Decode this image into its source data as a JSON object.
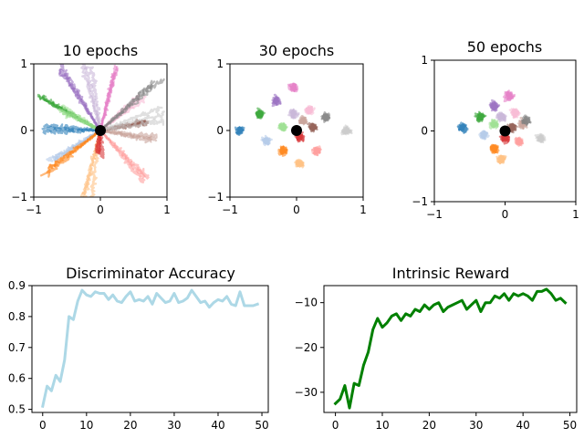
{
  "chart_data": [
    {
      "type": "line",
      "title": "10 epochs",
      "xlim": [
        -1,
        1
      ],
      "ylim": [
        -1,
        1
      ],
      "xticks": [
        -1,
        0,
        1
      ],
      "yticks": [
        -1,
        0,
        1
      ],
      "xtick_labels": [
        "−1",
        "0",
        "1"
      ],
      "ytick_labels": [
        "−1",
        "0",
        "1"
      ],
      "grid": false,
      "origin_marker": [
        0,
        0
      ],
      "trajectory_groups": [
        {
          "color": "#1f77b4",
          "end": [
            -0.85,
            0.0
          ]
        },
        {
          "color": "#aec7e8",
          "end": [
            -0.75,
            -0.45
          ]
        },
        {
          "color": "#ff7f0e",
          "end": [
            -0.8,
            -0.65
          ]
        },
        {
          "color": "#ffbb78",
          "end": [
            -0.2,
            -0.95
          ]
        },
        {
          "color": "#2ca02c",
          "end": [
            -0.9,
            0.5
          ]
        },
        {
          "color": "#98df8a",
          "end": [
            -0.55,
            0.3
          ]
        },
        {
          "color": "#d62728",
          "end": [
            -0.05,
            -0.35
          ]
        },
        {
          "color": "#ff9896",
          "end": [
            0.7,
            -0.75
          ]
        },
        {
          "color": "#9467bd",
          "end": [
            -0.65,
            0.9
          ]
        },
        {
          "color": "#c5b0d5",
          "end": [
            -0.2,
            0.95
          ]
        },
        {
          "color": "#8c564b",
          "end": [
            0.7,
            0.1
          ]
        },
        {
          "color": "#c49c94",
          "end": [
            0.85,
            -0.1
          ]
        },
        {
          "color": "#e377c2",
          "end": [
            0.2,
            0.9
          ]
        },
        {
          "color": "#f7b6d2",
          "end": [
            0.6,
            0.5
          ]
        },
        {
          "color": "#7f7f7f",
          "end": [
            0.9,
            0.75
          ]
        },
        {
          "color": "#c7c7c7",
          "end": [
            0.95,
            0.25
          ]
        }
      ]
    },
    {
      "type": "scatter",
      "title": "30 epochs",
      "xlim": [
        -1,
        1
      ],
      "ylim": [
        -1,
        1
      ],
      "xticks": [
        -1,
        0,
        1
      ],
      "yticks": [
        -1,
        0,
        1
      ],
      "xtick_labels": [
        "−1",
        "0",
        "1"
      ],
      "ytick_labels": [
        "−1",
        "0",
        "1"
      ],
      "grid": false,
      "origin_marker": [
        0,
        0
      ],
      "clusters": [
        {
          "color": "#1f77b4",
          "center": [
            -0.85,
            0.0
          ]
        },
        {
          "color": "#aec7e8",
          "center": [
            -0.45,
            -0.15
          ]
        },
        {
          "color": "#ff7f0e",
          "center": [
            -0.2,
            -0.3
          ]
        },
        {
          "color": "#ffbb78",
          "center": [
            0.05,
            -0.5
          ]
        },
        {
          "color": "#2ca02c",
          "center": [
            -0.55,
            0.25
          ]
        },
        {
          "color": "#98df8a",
          "center": [
            -0.2,
            0.05
          ]
        },
        {
          "color": "#d62728",
          "center": [
            0.05,
            -0.1
          ]
        },
        {
          "color": "#ff9896",
          "center": [
            0.3,
            -0.3
          ]
        },
        {
          "color": "#9467bd",
          "center": [
            -0.3,
            0.45
          ]
        },
        {
          "color": "#c5b0d5",
          "center": [
            -0.05,
            0.25
          ]
        },
        {
          "color": "#8c564b",
          "center": [
            0.25,
            0.05
          ]
        },
        {
          "color": "#c49c94",
          "center": [
            0.1,
            0.15
          ]
        },
        {
          "color": "#e377c2",
          "center": [
            -0.05,
            0.65
          ]
        },
        {
          "color": "#f7b6d2",
          "center": [
            0.2,
            0.3
          ]
        },
        {
          "color": "#7f7f7f",
          "center": [
            0.45,
            0.2
          ]
        },
        {
          "color": "#c7c7c7",
          "center": [
            0.75,
            0.0
          ]
        }
      ]
    },
    {
      "type": "scatter",
      "title": "50 epochs",
      "xlim": [
        -1,
        1
      ],
      "ylim": [
        -1,
        1
      ],
      "xticks": [
        -1,
        0,
        1
      ],
      "yticks": [
        -1,
        0,
        1
      ],
      "xtick_labels": [
        "−1",
        "0",
        "1"
      ],
      "ytick_labels": [
        "−1",
        "0",
        "1"
      ],
      "grid": false,
      "origin_marker": [
        0,
        0
      ],
      "clusters": [
        {
          "color": "#1f77b4",
          "center": [
            -0.6,
            0.05
          ]
        },
        {
          "color": "#aec7e8",
          "center": [
            -0.3,
            -0.05
          ]
        },
        {
          "color": "#ff7f0e",
          "center": [
            -0.15,
            -0.25
          ]
        },
        {
          "color": "#ffbb78",
          "center": [
            -0.05,
            -0.4
          ]
        },
        {
          "color": "#2ca02c",
          "center": [
            -0.35,
            0.2
          ]
        },
        {
          "color": "#98df8a",
          "center": [
            -0.15,
            0.1
          ]
        },
        {
          "color": "#d62728",
          "center": [
            0.0,
            -0.1
          ]
        },
        {
          "color": "#ff9896",
          "center": [
            0.2,
            -0.15
          ]
        },
        {
          "color": "#9467bd",
          "center": [
            -0.15,
            0.35
          ]
        },
        {
          "color": "#c5b0d5",
          "center": [
            -0.05,
            0.2
          ]
        },
        {
          "color": "#8c564b",
          "center": [
            0.1,
            0.05
          ]
        },
        {
          "color": "#c49c94",
          "center": [
            0.25,
            0.1
          ]
        },
        {
          "color": "#e377c2",
          "center": [
            0.05,
            0.5
          ]
        },
        {
          "color": "#f7b6d2",
          "center": [
            0.15,
            0.25
          ]
        },
        {
          "color": "#7f7f7f",
          "center": [
            0.3,
            0.15
          ]
        },
        {
          "color": "#c7c7c7",
          "center": [
            0.5,
            -0.1
          ]
        }
      ]
    },
    {
      "type": "line",
      "title": "Discriminator Accuracy",
      "xlim": [
        -2.45,
        51.45
      ],
      "ylim": [
        0.49,
        0.9
      ],
      "xticks": [
        0,
        10,
        20,
        30,
        40,
        50
      ],
      "yticks": [
        0.5,
        0.6,
        0.7,
        0.8,
        0.9
      ],
      "xtick_labels": [
        "0",
        "10",
        "20",
        "30",
        "40",
        "50"
      ],
      "ytick_labels": [
        "0.5",
        "0.6",
        "0.7",
        "0.8",
        "0.9"
      ],
      "grid": false,
      "series": [
        {
          "color": "#add8e6",
          "x": [
            0,
            1,
            2,
            3,
            4,
            5,
            6,
            7,
            8,
            9,
            10,
            11,
            12,
            13,
            14,
            15,
            16,
            17,
            18,
            19,
            20,
            21,
            22,
            23,
            24,
            25,
            26,
            27,
            28,
            29,
            30,
            31,
            32,
            33,
            34,
            35,
            36,
            37,
            38,
            39,
            40,
            41,
            42,
            43,
            44,
            45,
            46,
            47,
            48,
            49
          ],
          "values": [
            0.51,
            0.575,
            0.56,
            0.61,
            0.59,
            0.66,
            0.8,
            0.79,
            0.85,
            0.885,
            0.87,
            0.865,
            0.88,
            0.875,
            0.875,
            0.855,
            0.87,
            0.85,
            0.845,
            0.865,
            0.88,
            0.85,
            0.855,
            0.85,
            0.865,
            0.84,
            0.875,
            0.86,
            0.845,
            0.85,
            0.875,
            0.845,
            0.85,
            0.86,
            0.885,
            0.865,
            0.845,
            0.85,
            0.83,
            0.845,
            0.855,
            0.85,
            0.865,
            0.84,
            0.835,
            0.88,
            0.835,
            0.835,
            0.835,
            0.84
          ]
        }
      ]
    },
    {
      "type": "line",
      "title": "Intrinsic Reward",
      "xlim": [
        -2.45,
        51.45
      ],
      "ylim": [
        -34.5,
        -6.2
      ],
      "xticks": [
        0,
        10,
        20,
        30,
        40,
        50
      ],
      "yticks": [
        -30,
        -20,
        -10
      ],
      "xtick_labels": [
        "0",
        "10",
        "20",
        "30",
        "40",
        "50"
      ],
      "ytick_labels": [
        "−30",
        "−20",
        "−10"
      ],
      "grid": false,
      "series": [
        {
          "color": "#008000",
          "x": [
            0,
            1,
            2,
            3,
            4,
            5,
            6,
            7,
            8,
            9,
            10,
            11,
            12,
            13,
            14,
            15,
            16,
            17,
            18,
            19,
            20,
            21,
            22,
            23,
            24,
            25,
            26,
            27,
            28,
            29,
            30,
            31,
            32,
            33,
            34,
            35,
            36,
            37,
            38,
            39,
            40,
            41,
            42,
            43,
            44,
            45,
            46,
            47,
            48,
            49
          ],
          "values": [
            -32.5,
            -31.5,
            -28.5,
            -33.5,
            -28,
            -28.5,
            -24,
            -21,
            -16,
            -13.5,
            -15.5,
            -14.5,
            -13,
            -12.5,
            -14,
            -12.5,
            -13,
            -11.5,
            -12,
            -10.5,
            -11.5,
            -10.5,
            -10,
            -12,
            -11,
            -10.5,
            -10,
            -9.5,
            -11.5,
            -10.5,
            -9.5,
            -12,
            -10,
            -10,
            -8.5,
            -9,
            -8,
            -9.5,
            -8,
            -8.5,
            -8,
            -8.5,
            -9.5,
            -7.5,
            -7.5,
            -7,
            -8,
            -9.5,
            -9,
            -10
          ]
        }
      ]
    }
  ]
}
